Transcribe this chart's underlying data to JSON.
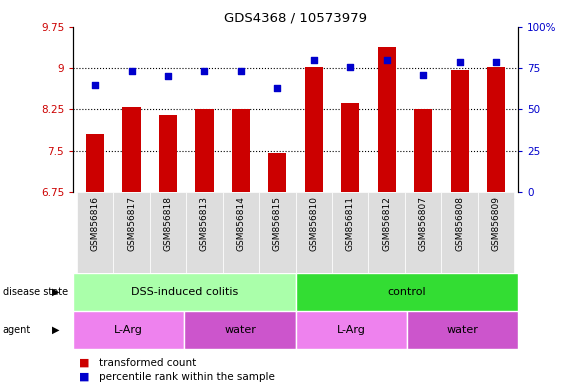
{
  "title": "GDS4368 / 10573979",
  "samples": [
    "GSM856816",
    "GSM856817",
    "GSM856818",
    "GSM856813",
    "GSM856814",
    "GSM856815",
    "GSM856810",
    "GSM856811",
    "GSM856812",
    "GSM856807",
    "GSM856808",
    "GSM856809"
  ],
  "red_values": [
    7.8,
    8.3,
    8.15,
    8.25,
    8.25,
    7.45,
    9.03,
    8.37,
    9.38,
    8.25,
    8.97,
    9.03
  ],
  "blue_values": [
    65,
    73,
    70,
    73,
    73,
    63,
    80,
    76,
    80,
    71,
    79,
    79
  ],
  "ylim_left": [
    6.75,
    9.75
  ],
  "ylim_right": [
    0,
    100
  ],
  "yticks_left": [
    6.75,
    7.5,
    8.25,
    9.0,
    9.75
  ],
  "ytick_labels_left": [
    "6.75",
    "7.5",
    "8.25",
    "9",
    "9.75"
  ],
  "yticks_right": [
    0,
    25,
    50,
    75,
    100
  ],
  "ytick_labels_right": [
    "0",
    "25",
    "50",
    "75",
    "100%"
  ],
  "red_color": "#CC0000",
  "blue_color": "#0000CC",
  "bar_width": 0.5,
  "disease_state_groups": [
    {
      "label": "DSS-induced colitis",
      "start": 0,
      "end": 5,
      "color": "#AAFFAA"
    },
    {
      "label": "control",
      "start": 6,
      "end": 11,
      "color": "#33DD33"
    }
  ],
  "agent_groups": [
    {
      "label": "L-Arg",
      "start": 0,
      "end": 2,
      "color": "#EE82EE"
    },
    {
      "label": "water",
      "start": 3,
      "end": 5,
      "color": "#CC55CC"
    },
    {
      "label": "L-Arg",
      "start": 6,
      "end": 8,
      "color": "#EE82EE"
    },
    {
      "label": "water",
      "start": 9,
      "end": 11,
      "color": "#CC55CC"
    }
  ],
  "legend_red": "transformed count",
  "legend_blue": "percentile rank within the sample",
  "tick_label_color_left": "#CC0000",
  "tick_label_color_right": "#0000CC",
  "background_color": "#ffffff",
  "xtick_bg_color": "#DDDDDD"
}
